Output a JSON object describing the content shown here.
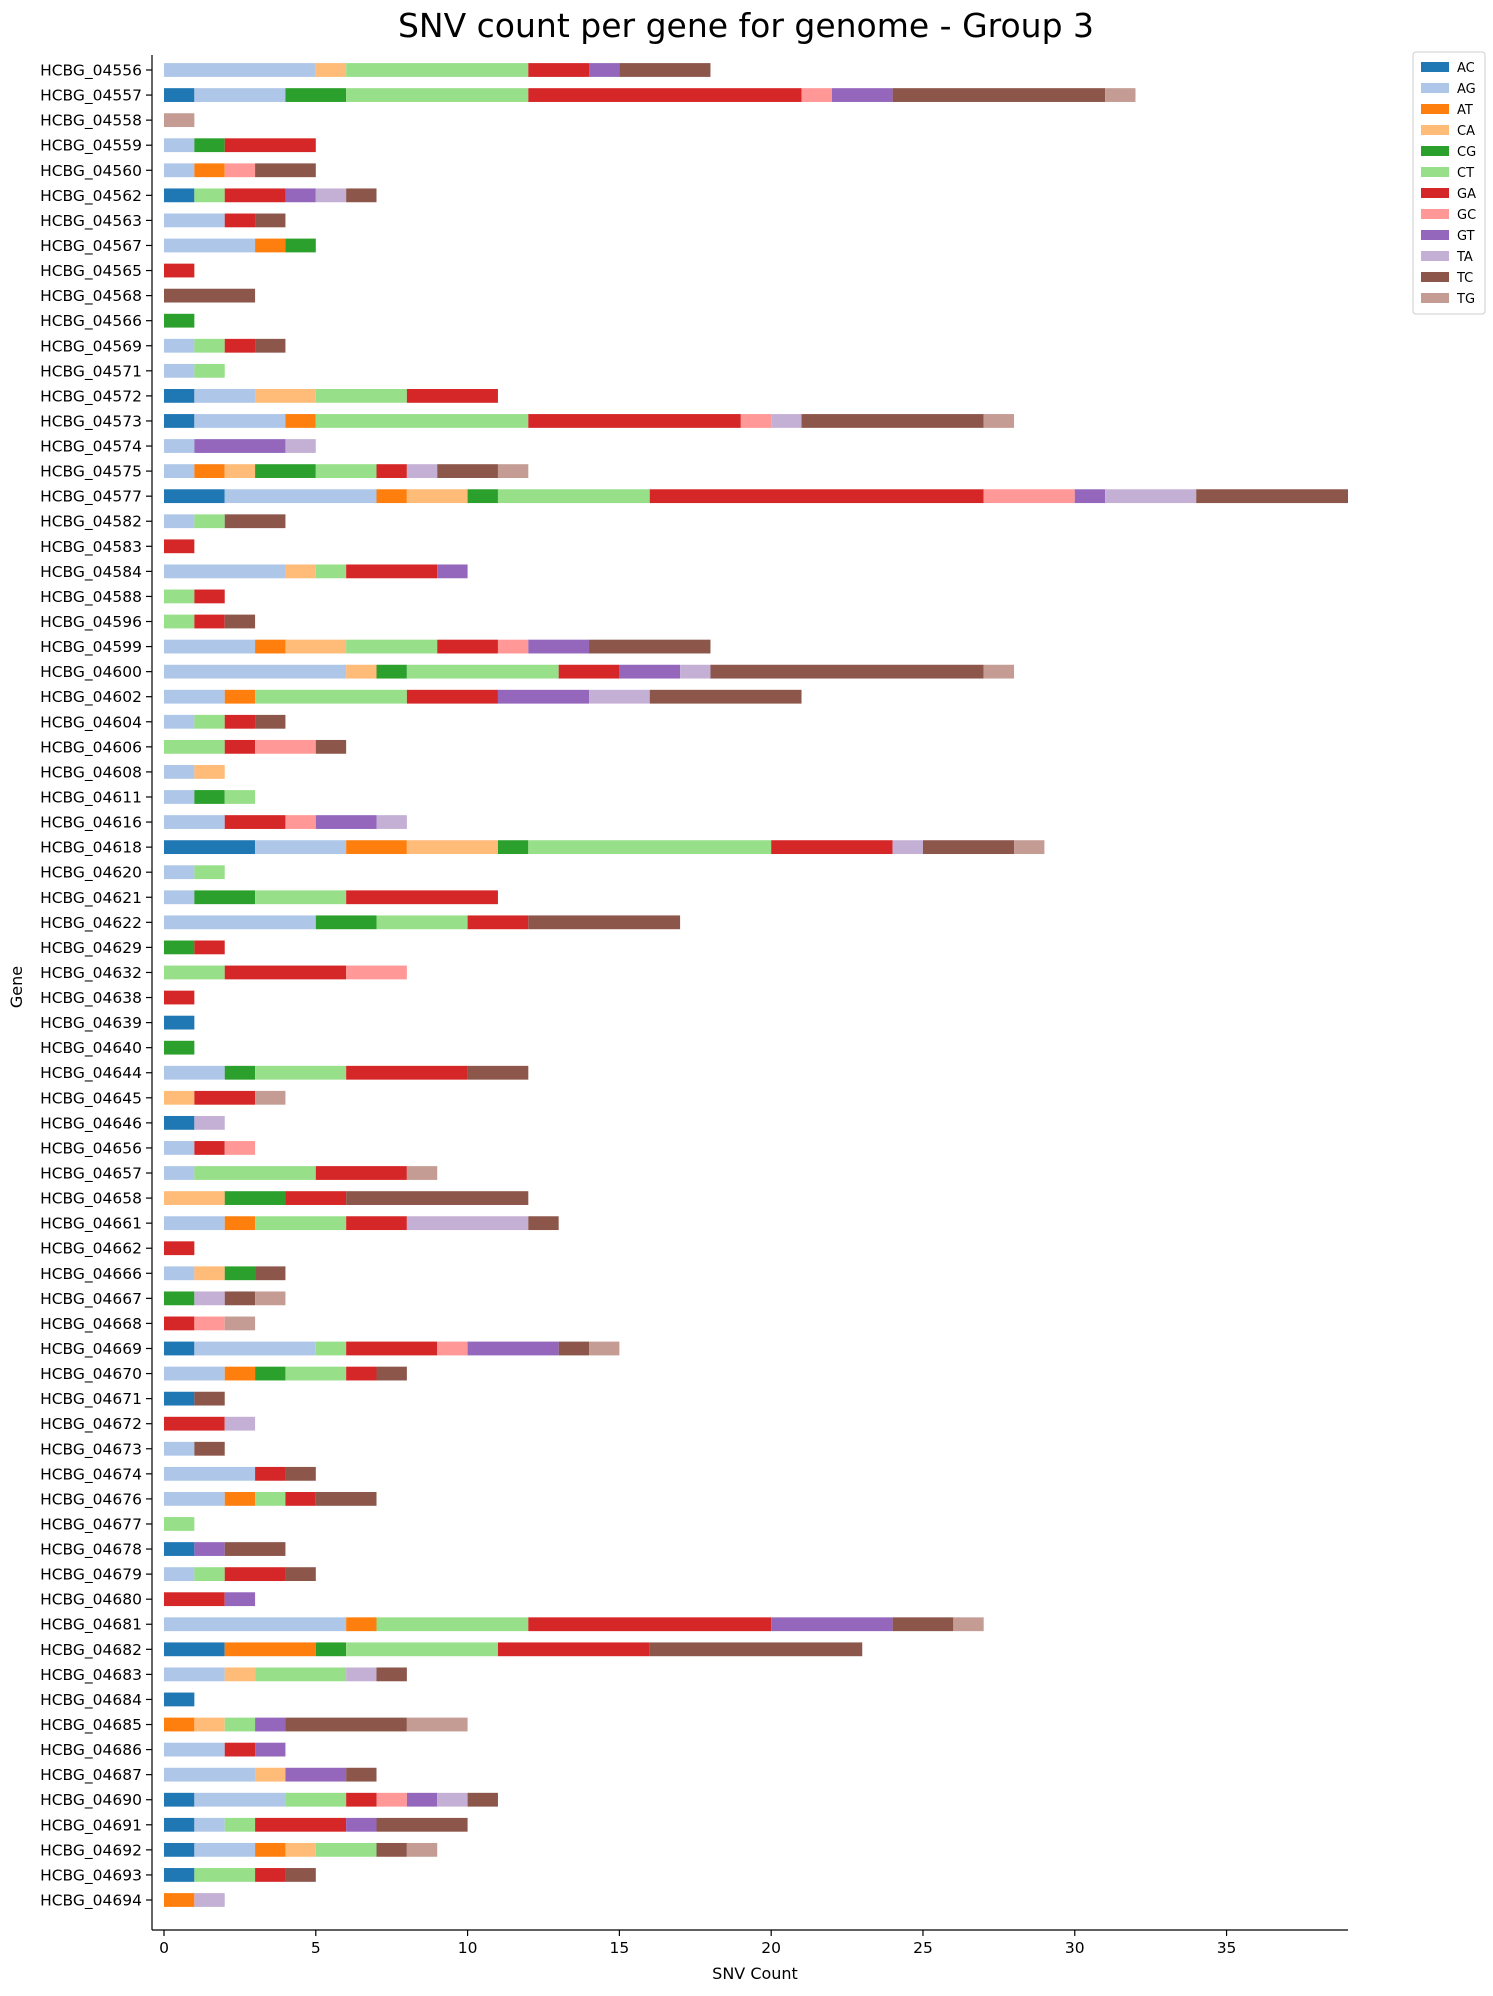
{
  "chart_data": {
    "type": "bar",
    "orientation": "horizontal",
    "stacked": true,
    "title": "SNV count per gene for genome - Group 3",
    "xlabel": "SNV Count",
    "ylabel": "Gene",
    "xlim": [
      0,
      39
    ],
    "xticks": [
      0,
      5,
      10,
      15,
      20,
      25,
      30,
      35
    ],
    "grid": false,
    "legend_position": "top-right",
    "series_names": [
      "AC",
      "AG",
      "AT",
      "CA",
      "CG",
      "CT",
      "GA",
      "GC",
      "GT",
      "TA",
      "TC",
      "TG"
    ],
    "colors": {
      "AC": "#1f77b4",
      "AG": "#aec7e8",
      "AT": "#ff7f0e",
      "CA": "#ffbb78",
      "CG": "#2ca02c",
      "CT": "#98df8a",
      "GA": "#d62728",
      "GC": "#ff9896",
      "GT": "#9467bd",
      "TA": "#c5b0d5",
      "TC": "#8c564b",
      "TG": "#c49c94"
    },
    "genes": [
      {
        "name": "HCBG_04556",
        "AG": 5,
        "CA": 1,
        "CT": 6,
        "GA": 2,
        "GT": 1,
        "TC": 3
      },
      {
        "name": "HCBG_04557",
        "AC": 1,
        "AG": 3,
        "CG": 2,
        "CT": 6,
        "GA": 9,
        "GC": 1,
        "GT": 2,
        "TC": 7,
        "TG": 1
      },
      {
        "name": "HCBG_04558",
        "TG": 1
      },
      {
        "name": "HCBG_04559",
        "AG": 1,
        "CG": 1,
        "GA": 3
      },
      {
        "name": "HCBG_04560",
        "AG": 1,
        "AT": 1,
        "GC": 1,
        "TC": 2
      },
      {
        "name": "HCBG_04562",
        "AC": 1,
        "CT": 1,
        "GA": 2,
        "GT": 1,
        "TA": 1,
        "TC": 1
      },
      {
        "name": "HCBG_04563",
        "AG": 2,
        "GA": 1,
        "TC": 1
      },
      {
        "name": "HCBG_04567",
        "AG": 3,
        "AT": 1,
        "CG": 1
      },
      {
        "name": "HCBG_04565",
        "GA": 1
      },
      {
        "name": "HCBG_04568",
        "TC": 3
      },
      {
        "name": "HCBG_04566",
        "CG": 1
      },
      {
        "name": "HCBG_04569",
        "AG": 1,
        "CT": 1,
        "GA": 1,
        "TC": 1
      },
      {
        "name": "HCBG_04571",
        "AG": 1,
        "CT": 1
      },
      {
        "name": "HCBG_04572",
        "AC": 1,
        "AG": 2,
        "CA": 2,
        "CT": 3,
        "GA": 3
      },
      {
        "name": "HCBG_04573",
        "AC": 1,
        "AG": 3,
        "AT": 1,
        "CT": 7,
        "GA": 7,
        "GC": 1,
        "TA": 1,
        "TC": 6,
        "TG": 1
      },
      {
        "name": "HCBG_04574",
        "AG": 1,
        "GT": 3,
        "TA": 1
      },
      {
        "name": "HCBG_04575",
        "AG": 1,
        "AT": 1,
        "CA": 1,
        "CG": 2,
        "CT": 2,
        "GA": 1,
        "TA": 1,
        "TC": 2,
        "TG": 1
      },
      {
        "name": "HCBG_04577",
        "AC": 2,
        "AG": 5,
        "AT": 1,
        "CA": 2,
        "CG": 1,
        "CT": 5,
        "GA": 11,
        "GC": 3,
        "GT": 1,
        "TA": 3,
        "TC": 5
      },
      {
        "name": "HCBG_04582",
        "AG": 1,
        "CT": 1,
        "TC": 2
      },
      {
        "name": "HCBG_04583",
        "GA": 1
      },
      {
        "name": "HCBG_04584",
        "AG": 4,
        "CA": 1,
        "CT": 1,
        "GA": 3,
        "GT": 1
      },
      {
        "name": "HCBG_04588",
        "CT": 1,
        "GA": 1
      },
      {
        "name": "HCBG_04596",
        "CT": 1,
        "GA": 1,
        "TC": 1
      },
      {
        "name": "HCBG_04599",
        "AG": 3,
        "AT": 1,
        "CA": 2,
        "CT": 3,
        "GA": 2,
        "GC": 1,
        "GT": 2,
        "TC": 4
      },
      {
        "name": "HCBG_04600",
        "AG": 6,
        "CA": 1,
        "CG": 1,
        "CT": 5,
        "GA": 2,
        "GT": 2,
        "TA": 1,
        "TC": 9,
        "TG": 1
      },
      {
        "name": "HCBG_04602",
        "AG": 2,
        "AT": 1,
        "CT": 5,
        "GA": 3,
        "GT": 3,
        "TA": 2,
        "TC": 5
      },
      {
        "name": "HCBG_04604",
        "AG": 1,
        "CT": 1,
        "GA": 1,
        "TC": 1
      },
      {
        "name": "HCBG_04606",
        "CT": 2,
        "GA": 1,
        "GC": 2,
        "TC": 1
      },
      {
        "name": "HCBG_04608",
        "AG": 1,
        "CA": 1
      },
      {
        "name": "HCBG_04611",
        "AG": 1,
        "CG": 1,
        "CT": 1
      },
      {
        "name": "HCBG_04616",
        "AG": 2,
        "GA": 2,
        "GC": 1,
        "GT": 2,
        "TA": 1
      },
      {
        "name": "HCBG_04618",
        "AC": 3,
        "AG": 3,
        "AT": 2,
        "CA": 3,
        "CG": 1,
        "CT": 8,
        "GA": 4,
        "TA": 1,
        "TC": 3,
        "TG": 1
      },
      {
        "name": "HCBG_04620",
        "AG": 1,
        "CT": 1
      },
      {
        "name": "HCBG_04621",
        "AG": 1,
        "CG": 2,
        "CT": 3,
        "GA": 5
      },
      {
        "name": "HCBG_04622",
        "AG": 5,
        "CG": 2,
        "CT": 3,
        "GA": 2,
        "TC": 5
      },
      {
        "name": "HCBG_04629",
        "CG": 1,
        "GA": 1
      },
      {
        "name": "HCBG_04632",
        "CT": 2,
        "GA": 4,
        "GC": 2
      },
      {
        "name": "HCBG_04638",
        "GA": 1
      },
      {
        "name": "HCBG_04639",
        "AC": 1
      },
      {
        "name": "HCBG_04640",
        "CG": 1
      },
      {
        "name": "HCBG_04644",
        "AG": 2,
        "CG": 1,
        "CT": 3,
        "GA": 4,
        "TC": 2
      },
      {
        "name": "HCBG_04645",
        "CA": 1,
        "GA": 2,
        "TG": 1
      },
      {
        "name": "HCBG_04646",
        "AC": 1,
        "TA": 1
      },
      {
        "name": "HCBG_04656",
        "AG": 1,
        "GA": 1,
        "GC": 1
      },
      {
        "name": "HCBG_04657",
        "AG": 1,
        "CT": 4,
        "GA": 3,
        "TG": 1
      },
      {
        "name": "HCBG_04658",
        "CA": 2,
        "CG": 2,
        "GA": 2,
        "TC": 6
      },
      {
        "name": "HCBG_04661",
        "AG": 2,
        "AT": 1,
        "CT": 3,
        "GA": 2,
        "TA": 4,
        "TC": 1
      },
      {
        "name": "HCBG_04662",
        "GA": 1
      },
      {
        "name": "HCBG_04666",
        "AG": 1,
        "CA": 1,
        "CG": 1,
        "TC": 1
      },
      {
        "name": "HCBG_04667",
        "CG": 1,
        "TA": 1,
        "TC": 1,
        "TG": 1
      },
      {
        "name": "HCBG_04668",
        "GA": 1,
        "GC": 1,
        "TG": 1
      },
      {
        "name": "HCBG_04669",
        "AC": 1,
        "AG": 4,
        "CT": 1,
        "GA": 3,
        "GC": 1,
        "GT": 3,
        "TC": 1,
        "TG": 1
      },
      {
        "name": "HCBG_04670",
        "AG": 2,
        "AT": 1,
        "CG": 1,
        "CT": 2,
        "GA": 1,
        "TC": 1
      },
      {
        "name": "HCBG_04671",
        "AC": 1,
        "TC": 1
      },
      {
        "name": "HCBG_04672",
        "GA": 2,
        "TA": 1
      },
      {
        "name": "HCBG_04673",
        "AG": 1,
        "TC": 1
      },
      {
        "name": "HCBG_04674",
        "AG": 3,
        "GA": 1,
        "TC": 1
      },
      {
        "name": "HCBG_04676",
        "AG": 2,
        "AT": 1,
        "CT": 1,
        "GA": 1,
        "TC": 2
      },
      {
        "name": "HCBG_04677",
        "CT": 1
      },
      {
        "name": "HCBG_04678",
        "AC": 1,
        "GT": 1,
        "TC": 2
      },
      {
        "name": "HCBG_04679",
        "AG": 1,
        "CT": 1,
        "GA": 2,
        "TC": 1
      },
      {
        "name": "HCBG_04680",
        "GA": 2,
        "GT": 1
      },
      {
        "name": "HCBG_04681",
        "AG": 6,
        "AT": 1,
        "CT": 5,
        "GA": 8,
        "GT": 4,
        "TC": 2,
        "TG": 1
      },
      {
        "name": "HCBG_04682",
        "AC": 2,
        "AT": 3,
        "CG": 1,
        "CT": 5,
        "GA": 5,
        "TC": 7
      },
      {
        "name": "HCBG_04683",
        "AG": 2,
        "CA": 1,
        "CT": 3,
        "TA": 1,
        "TC": 1
      },
      {
        "name": "HCBG_04684",
        "AC": 1
      },
      {
        "name": "HCBG_04685",
        "AT": 1,
        "CA": 1,
        "CT": 1,
        "GT": 1,
        "TC": 4,
        "TG": 2
      },
      {
        "name": "HCBG_04686",
        "AG": 2,
        "GA": 1,
        "GT": 1
      },
      {
        "name": "HCBG_04687",
        "AG": 3,
        "CA": 1,
        "GT": 2,
        "TC": 1
      },
      {
        "name": "HCBG_04690",
        "AC": 1,
        "AG": 3,
        "CT": 2,
        "GA": 1,
        "GC": 1,
        "GT": 1,
        "TA": 1,
        "TC": 1
      },
      {
        "name": "HCBG_04691",
        "AC": 1,
        "AG": 1,
        "CT": 1,
        "GA": 3,
        "GT": 1,
        "TC": 3
      },
      {
        "name": "HCBG_04692",
        "AC": 1,
        "AG": 2,
        "AT": 1,
        "CA": 1,
        "CT": 2,
        "TC": 1,
        "TG": 1
      },
      {
        "name": "HCBG_04693",
        "AC": 1,
        "CT": 2,
        "GA": 1,
        "TC": 1
      },
      {
        "name": "HCBG_04694",
        "AT": 1,
        "TA": 1
      }
    ]
  }
}
